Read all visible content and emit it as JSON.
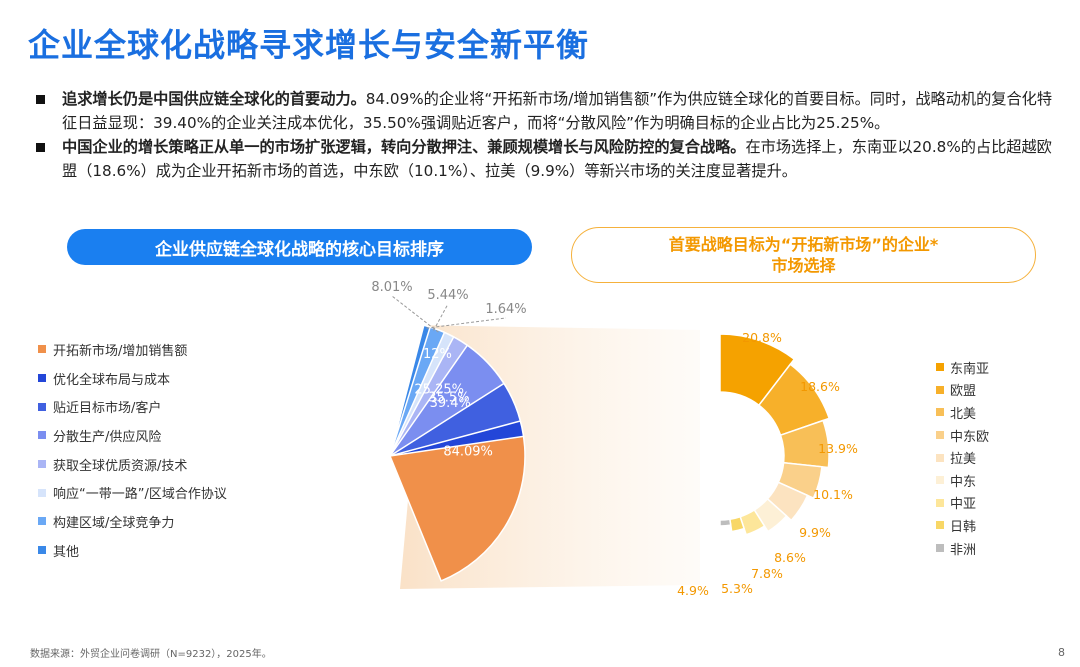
{
  "title": "企业全球化战略寻求增长与安全新平衡",
  "bullets": [
    {
      "bold": "追求增长仍是中国供应链全球化的首要动力。",
      "text": "84.09%的企业将“开拓新市场/增加销售额”作为供应链全球化的首要目标。同时，战略动机的复合化特征日益显现：39.40%的企业关注成本优化，35.50%强调贴近客户，而将“分散风险”作为明确目标的企业占比为25.25%。"
    },
    {
      "bold": "中国企业的增长策略正从单一的市场扩张逻辑，转向分散押注、兼顾规模增长与风险防控的复合战略。",
      "text": "在市场选择上，东南亚以20.8%的占比超越欧盟（18.6%）成为企业开拓新市场的首选，中东欧（10.1%）、拉美（9.9%）等新兴市场的关注度显著提升。"
    }
  ],
  "left_panel_title": "企业供应链全球化战略的核心目标排序",
  "right_panel_title_line1": "首要战略目标为“开拓新市场”的企业*",
  "right_panel_title_line2": "市场选择",
  "source": "数据来源：外贸企业问卷调研（N=9232），2025年。",
  "page_number": "8",
  "chart_data": [
    {
      "type": "pie",
      "title": "企业供应链全球化战略的核心目标排序",
      "categories": [
        "开拓新市场/增加销售额",
        "优化全球布局与成本",
        "贴近目标市场/客户",
        "分散生产/供应风险",
        "获取全球优质资源/技术",
        "响应“一带一路”/区域合作协议",
        "构建区域/全球竞争力",
        "其他"
      ],
      "values": [
        84.09,
        39.4,
        35.5,
        25.25,
        12,
        8.01,
        5.44,
        1.64
      ],
      "labels": [
        "84.09%",
        "39.4%",
        "35.5%",
        "25.25%",
        "12%",
        "8.01%",
        "5.44%",
        "1.64%"
      ],
      "colors": [
        "#f0904a",
        "#2346d8",
        "#4060e0",
        "#7b8ef0",
        "#aab5f5",
        "#d6e4fb",
        "#6aa8f5",
        "#3a88e8"
      ]
    },
    {
      "type": "pie",
      "title": "首要战略目标为“开拓新市场”的企业*市场选择",
      "categories": [
        "东南亚",
        "欧盟",
        "北美",
        "中东欧",
        "拉美",
        "中东",
        "中亚",
        "日韩",
        "非洲"
      ],
      "values": [
        20.8,
        18.6,
        13.9,
        10.1,
        9.9,
        8.6,
        7.8,
        5.3,
        4.9
      ],
      "labels": [
        "20.8%",
        "18.6%",
        "13.9%",
        "10.1%",
        "9.9%",
        "8.6%",
        "7.8%",
        "5.3%",
        "4.9%"
      ],
      "colors": [
        "#f5a200",
        "#f7b02a",
        "#f8bf57",
        "#fad08a",
        "#fce3c0",
        "#fdf0d6",
        "#fde69a",
        "#f8d766",
        "#bdbdbd"
      ]
    }
  ]
}
